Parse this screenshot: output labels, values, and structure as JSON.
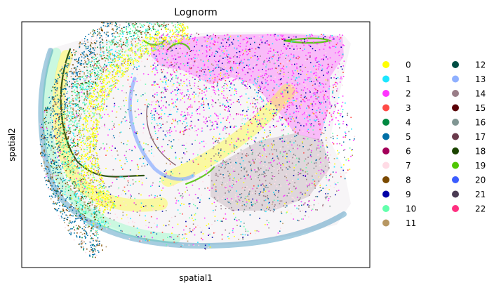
{
  "chart_data": {
    "type": "scatter",
    "title": "Lognorm",
    "xlabel": "spatial1",
    "ylabel": "spatial2",
    "xticks": [],
    "yticks": [],
    "legend_placement": "right",
    "legend_columns": 2,
    "series": [
      {
        "name": "0",
        "color": "#ffff00"
      },
      {
        "name": "1",
        "color": "#1ce6ff"
      },
      {
        "name": "2",
        "color": "#ff34ff"
      },
      {
        "name": "3",
        "color": "#ff4a46"
      },
      {
        "name": "4",
        "color": "#008941"
      },
      {
        "name": "5",
        "color": "#006fa6"
      },
      {
        "name": "6",
        "color": "#a30059"
      },
      {
        "name": "7",
        "color": "#ffdbe5"
      },
      {
        "name": "8",
        "color": "#7a4900"
      },
      {
        "name": "9",
        "color": "#0000a6"
      },
      {
        "name": "10",
        "color": "#63ffac"
      },
      {
        "name": "11",
        "color": "#b79762"
      },
      {
        "name": "12",
        "color": "#004d43"
      },
      {
        "name": "13",
        "color": "#8fb0ff"
      },
      {
        "name": "14",
        "color": "#997d87"
      },
      {
        "name": "15",
        "color": "#5a0007"
      },
      {
        "name": "16",
        "color": "#809693"
      },
      {
        "name": "17",
        "color": "#6a3a4c"
      },
      {
        "name": "18",
        "color": "#1b4400"
      },
      {
        "name": "19",
        "color": "#4fc601"
      },
      {
        "name": "20",
        "color": "#3b5dff"
      },
      {
        "name": "21",
        "color": "#4a3b53"
      },
      {
        "name": "22",
        "color": "#ff2f80"
      }
    ]
  }
}
